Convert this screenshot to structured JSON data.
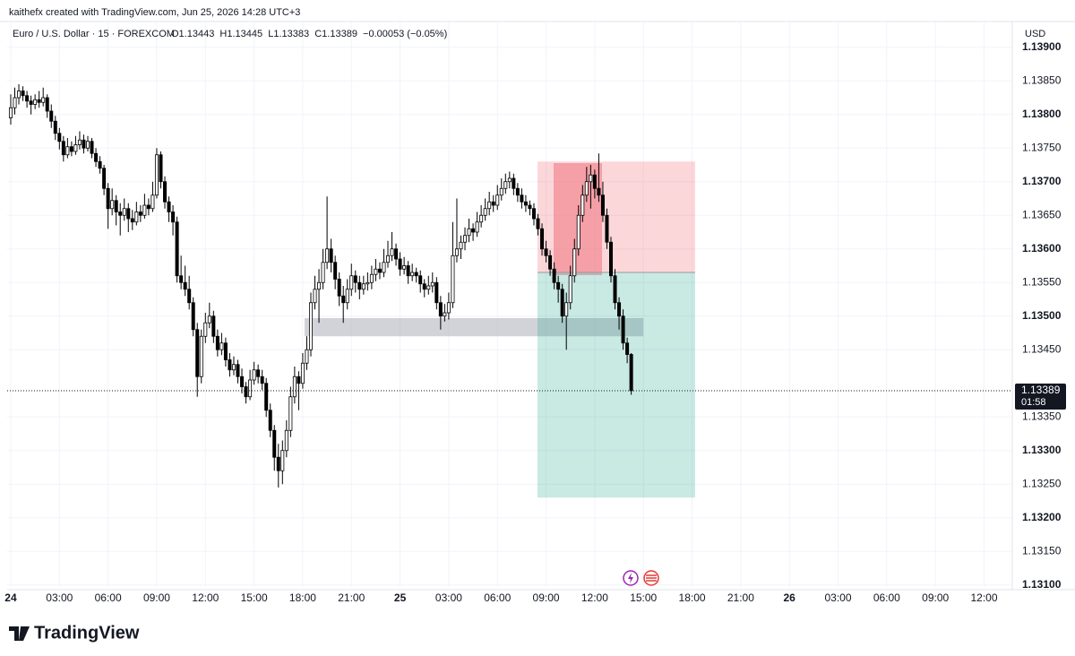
{
  "header": {
    "credit": "kaithefx created with TradingView.com, Jun 25, 2026 14:28 UTC+3"
  },
  "footer": {
    "brand": "TradingView"
  },
  "chart_data": {
    "type": "candlestick",
    "symbol": "Euro / U.S. Dollar · 15 · FOREXCOM",
    "quote": "O1.13443  H1.13445  L1.13383  C1.13389  −0.00053 (−0.05%)",
    "currency": "USD",
    "last_price": 1.13389,
    "countdown": "01:58",
    "colors": {
      "up": "#ffffff",
      "down": "#000000",
      "outline": "#000000"
    },
    "grid": true,
    "xlim": [
      -0.22,
      61.74
    ],
    "xticks": [
      {
        "value": 0,
        "label": "24"
      },
      {
        "value": 3,
        "label": "03:00"
      },
      {
        "value": 6,
        "label": "06:00"
      },
      {
        "value": 9,
        "label": "09:00"
      },
      {
        "value": 12,
        "label": "12:00"
      },
      {
        "value": 15,
        "label": "15:00"
      },
      {
        "value": 18,
        "label": "18:00"
      },
      {
        "value": 21,
        "label": "21:00"
      },
      {
        "value": 24,
        "label": "25"
      },
      {
        "value": 27,
        "label": "03:00"
      },
      {
        "value": 30,
        "label": "06:00"
      },
      {
        "value": 33,
        "label": "09:00"
      },
      {
        "value": 36,
        "label": "12:00"
      },
      {
        "value": 39,
        "label": "15:00"
      },
      {
        "value": 42,
        "label": "18:00"
      },
      {
        "value": 45,
        "label": "21:00"
      },
      {
        "value": 48,
        "label": "26"
      },
      {
        "value": 51,
        "label": "03:00"
      },
      {
        "value": 54,
        "label": "06:00"
      },
      {
        "value": 57,
        "label": "09:00"
      },
      {
        "value": 60,
        "label": "12:00"
      }
    ],
    "ylim": [
      1.13097,
      1.13941
    ],
    "yticks": [
      {
        "value": 1.139,
        "label": "1.13900"
      },
      {
        "value": 1.1385,
        "label": "1.13850"
      },
      {
        "value": 1.138,
        "label": "1.13800"
      },
      {
        "value": 1.1375,
        "label": "1.13750"
      },
      {
        "value": 1.137,
        "label": "1.13700"
      },
      {
        "value": 1.1365,
        "label": "1.13650"
      },
      {
        "value": 1.136,
        "label": "1.13600"
      },
      {
        "value": 1.1355,
        "label": "1.13550"
      },
      {
        "value": 1.135,
        "label": "1.13500"
      },
      {
        "value": 1.1345,
        "label": "1.13450"
      },
      {
        "value": 1.1335,
        "label": "1.13350"
      },
      {
        "value": 1.133,
        "label": "1.13300"
      },
      {
        "value": 1.1325,
        "label": "1.13250"
      },
      {
        "value": 1.132,
        "label": "1.13200"
      },
      {
        "value": 1.1315,
        "label": "1.13150"
      },
      {
        "value": 1.131,
        "label": "1.13100"
      }
    ],
    "zone": {
      "x": [
        18.11,
        39.0
      ],
      "top": 1.13497,
      "bottom": 1.1347
    },
    "position": {
      "x": [
        32.47,
        42.19
      ],
      "stop": 1.1373,
      "entry": 1.13565,
      "target": 1.1323
    },
    "x": [
      0,
      0.25,
      0.5,
      0.75,
      1,
      1.25,
      1.5,
      1.75,
      2,
      2.25,
      2.5,
      2.75,
      3,
      3.25,
      3.5,
      3.75,
      4,
      4.25,
      4.5,
      4.75,
      5,
      5.25,
      5.5,
      5.75,
      6,
      6.25,
      6.5,
      6.75,
      7,
      7.25,
      7.5,
      7.75,
      8,
      8.25,
      8.5,
      8.75,
      9,
      9.25,
      9.5,
      9.75,
      10,
      10.25,
      10.5,
      10.75,
      11,
      11.25,
      11.5,
      11.75,
      12,
      12.25,
      12.5,
      12.75,
      13,
      13.25,
      13.5,
      13.75,
      14,
      14.25,
      14.5,
      14.75,
      15,
      15.25,
      15.5,
      15.75,
      16,
      16.25,
      16.5,
      16.75,
      17,
      17.25,
      17.5,
      17.75,
      18,
      18.25,
      18.5,
      18.75,
      19,
      19.25,
      19.5,
      19.75,
      20,
      20.25,
      20.5,
      20.75,
      21,
      21.25,
      21.5,
      21.75,
      22,
      22.25,
      22.5,
      22.75,
      23,
      23.25,
      23.5,
      23.75,
      24,
      24.25,
      24.5,
      24.75,
      25,
      25.25,
      25.5,
      25.75,
      26,
      26.25,
      26.5,
      26.75,
      27,
      27.25,
      27.5,
      27.75,
      28,
      28.25,
      28.5,
      28.75,
      29,
      29.25,
      29.5,
      29.75,
      30,
      30.25,
      30.5,
      30.75,
      31,
      31.25,
      31.5,
      31.75,
      32,
      32.25,
      32.5,
      32.75,
      33,
      33.25,
      33.5,
      33.75,
      34,
      34.25,
      34.5,
      34.75,
      35,
      35.25,
      35.5,
      35.75,
      36,
      36.25,
      36.5,
      36.75,
      37,
      37.25,
      37.5,
      37.75,
      38,
      38.25
    ],
    "ohlc": [
      [
        1.13795,
        1.1383,
        1.13785,
        1.1381
      ],
      [
        1.1381,
        1.1384,
        1.138,
        1.13825
      ],
      [
        1.13825,
        1.13845,
        1.13815,
        1.13835
      ],
      [
        1.13835,
        1.13842,
        1.1382,
        1.13828
      ],
      [
        1.13828,
        1.13835,
        1.1381,
        1.1382
      ],
      [
        1.1382,
        1.13828,
        1.138,
        1.13815
      ],
      [
        1.13815,
        1.1383,
        1.13808,
        1.13822
      ],
      [
        1.13822,
        1.13835,
        1.1381,
        1.13818
      ],
      [
        1.13818,
        1.1384,
        1.13812,
        1.13825
      ],
      [
        1.13825,
        1.1383,
        1.13795,
        1.13805
      ],
      [
        1.13805,
        1.13815,
        1.1378,
        1.1379
      ],
      [
        1.1379,
        1.13798,
        1.13762,
        1.13772
      ],
      [
        1.13772,
        1.1378,
        1.13748,
        1.1376
      ],
      [
        1.1376,
        1.13768,
        1.1373,
        1.1374
      ],
      [
        1.1374,
        1.13765,
        1.13735,
        1.13752
      ],
      [
        1.13752,
        1.1376,
        1.13738,
        1.13745
      ],
      [
        1.13745,
        1.13768,
        1.1374,
        1.13755
      ],
      [
        1.13755,
        1.13775,
        1.13748,
        1.13762
      ],
      [
        1.13762,
        1.1377,
        1.13742,
        1.1375
      ],
      [
        1.1375,
        1.13768,
        1.13745,
        1.1376
      ],
      [
        1.1376,
        1.13765,
        1.13735,
        1.13742
      ],
      [
        1.13742,
        1.1375,
        1.13722,
        1.1373
      ],
      [
        1.1373,
        1.13738,
        1.13712,
        1.1372
      ],
      [
        1.1372,
        1.13725,
        1.1368,
        1.1369
      ],
      [
        1.1369,
        1.13698,
        1.1363,
        1.1366
      ],
      [
        1.1366,
        1.1369,
        1.1365,
        1.13672
      ],
      [
        1.13672,
        1.1368,
        1.13635,
        1.13655
      ],
      [
        1.13655,
        1.13668,
        1.1362,
        1.1365
      ],
      [
        1.1365,
        1.13675,
        1.13642,
        1.1366
      ],
      [
        1.1366,
        1.13668,
        1.13625,
        1.13645
      ],
      [
        1.13645,
        1.13658,
        1.13628,
        1.1364
      ],
      [
        1.1364,
        1.1367,
        1.13635,
        1.13655
      ],
      [
        1.13655,
        1.13665,
        1.1364,
        1.1365
      ],
      [
        1.1365,
        1.13682,
        1.13645,
        1.13665
      ],
      [
        1.13665,
        1.13675,
        1.1365,
        1.1366
      ],
      [
        1.1366,
        1.137,
        1.13655,
        1.1368
      ],
      [
        1.1368,
        1.1375,
        1.13675,
        1.1374
      ],
      [
        1.1374,
        1.13745,
        1.1369,
        1.137
      ],
      [
        1.137,
        1.13708,
        1.1366,
        1.1367
      ],
      [
        1.1367,
        1.13678,
        1.1364,
        1.13655
      ],
      [
        1.13655,
        1.13665,
        1.1362,
        1.1364
      ],
      [
        1.1364,
        1.13648,
        1.1355,
        1.1356
      ],
      [
        1.1356,
        1.1359,
        1.1354,
        1.1355
      ],
      [
        1.1355,
        1.13575,
        1.1353,
        1.1354
      ],
      [
        1.1354,
        1.1356,
        1.1351,
        1.1352
      ],
      [
        1.1352,
        1.13528,
        1.1347,
        1.1348
      ],
      [
        1.1348,
        1.1349,
        1.1338,
        1.1341
      ],
      [
        1.1341,
        1.1348,
        1.134,
        1.1347
      ],
      [
        1.1347,
        1.13505,
        1.1346,
        1.1349
      ],
      [
        1.1349,
        1.1352,
        1.13482,
        1.135
      ],
      [
        1.135,
        1.13508,
        1.1346,
        1.1347
      ],
      [
        1.1347,
        1.1348,
        1.1344,
        1.1345
      ],
      [
        1.1345,
        1.13475,
        1.13442,
        1.1346
      ],
      [
        1.1346,
        1.13468,
        1.13425,
        1.13435
      ],
      [
        1.13435,
        1.13445,
        1.1341,
        1.1342
      ],
      [
        1.1342,
        1.1344,
        1.13412,
        1.13428
      ],
      [
        1.13428,
        1.13435,
        1.134,
        1.1341
      ],
      [
        1.1341,
        1.13422,
        1.13385,
        1.13395
      ],
      [
        1.13395,
        1.13402,
        1.1337,
        1.1338
      ],
      [
        1.1338,
        1.1342,
        1.13375,
        1.13405
      ],
      [
        1.13405,
        1.13432,
        1.13398,
        1.1342
      ],
      [
        1.1342,
        1.13428,
        1.134,
        1.1341
      ],
      [
        1.1341,
        1.1342,
        1.1339,
        1.134
      ],
      [
        1.134,
        1.13408,
        1.1335,
        1.1336
      ],
      [
        1.1336,
        1.1337,
        1.1332,
        1.1333
      ],
      [
        1.1333,
        1.13338,
        1.1327,
        1.1329
      ],
      [
        1.1329,
        1.1331,
        1.13245,
        1.1327
      ],
      [
        1.1327,
        1.13315,
        1.1325,
        1.133
      ],
      [
        1.133,
        1.13345,
        1.1329,
        1.1333
      ],
      [
        1.1333,
        1.13395,
        1.1332,
        1.1338
      ],
      [
        1.1338,
        1.13425,
        1.1337,
        1.1341
      ],
      [
        1.1341,
        1.13418,
        1.1336,
        1.134
      ],
      [
        1.134,
        1.13445,
        1.13392,
        1.1343
      ],
      [
        1.1343,
        1.1347,
        1.1342,
        1.1345
      ],
      [
        1.1345,
        1.13535,
        1.1344,
        1.1352
      ],
      [
        1.1352,
        1.1356,
        1.1351,
        1.1354
      ],
      [
        1.1354,
        1.1357,
        1.1349,
        1.1355
      ],
      [
        1.1355,
        1.136,
        1.1354,
        1.1358
      ],
      [
        1.1358,
        1.13678,
        1.1357,
        1.136
      ],
      [
        1.136,
        1.13615,
        1.13565,
        1.1358
      ],
      [
        1.1358,
        1.1359,
        1.1354,
        1.13555
      ],
      [
        1.13555,
        1.13565,
        1.13515,
        1.1353
      ],
      [
        1.1353,
        1.13545,
        1.1349,
        1.1352
      ],
      [
        1.1352,
        1.13555,
        1.1351,
        1.1354
      ],
      [
        1.1354,
        1.13578,
        1.1353,
        1.1356
      ],
      [
        1.1356,
        1.13568,
        1.13535,
        1.1355
      ],
      [
        1.1355,
        1.1356,
        1.13525,
        1.1354
      ],
      [
        1.1354,
        1.1356,
        1.13532,
        1.13548
      ],
      [
        1.13548,
        1.13565,
        1.13538,
        1.1355
      ],
      [
        1.1355,
        1.13575,
        1.1354,
        1.13562
      ],
      [
        1.13562,
        1.13585,
        1.13552,
        1.1357
      ],
      [
        1.1357,
        1.1358,
        1.13555,
        1.13565
      ],
      [
        1.13565,
        1.136,
        1.13558,
        1.1358
      ],
      [
        1.1358,
        1.13612,
        1.13572,
        1.1359
      ],
      [
        1.1359,
        1.13625,
        1.13582,
        1.136
      ],
      [
        1.136,
        1.13608,
        1.13575,
        1.13585
      ],
      [
        1.13585,
        1.13595,
        1.1356,
        1.1357
      ],
      [
        1.1357,
        1.13588,
        1.13562,
        1.13575
      ],
      [
        1.13575,
        1.13582,
        1.13548,
        1.1356
      ],
      [
        1.1356,
        1.13578,
        1.13552,
        1.13565
      ],
      [
        1.13565,
        1.13572,
        1.1355,
        1.1356
      ],
      [
        1.1356,
        1.13568,
        1.13535,
        1.13548
      ],
      [
        1.13548,
        1.13555,
        1.13528,
        1.1354
      ],
      [
        1.1354,
        1.1356,
        1.13532,
        1.13545
      ],
      [
        1.13545,
        1.13565,
        1.13535,
        1.1355
      ],
      [
        1.1355,
        1.13558,
        1.1351,
        1.1352
      ],
      [
        1.1352,
        1.1353,
        1.1348,
        1.135
      ],
      [
        1.135,
        1.13518,
        1.13492,
        1.13505
      ],
      [
        1.13505,
        1.13535,
        1.13495,
        1.1352
      ],
      [
        1.1352,
        1.1364,
        1.13512,
        1.1359
      ],
      [
        1.1359,
        1.13675,
        1.1358,
        1.136
      ],
      [
        1.136,
        1.1362,
        1.13585,
        1.1361
      ],
      [
        1.1361,
        1.13632,
        1.13598,
        1.1362
      ],
      [
        1.1362,
        1.13645,
        1.1361,
        1.1363
      ],
      [
        1.1363,
        1.13638,
        1.13612,
        1.13625
      ],
      [
        1.13625,
        1.13655,
        1.13618,
        1.1364
      ],
      [
        1.1364,
        1.13665,
        1.13632,
        1.1365
      ],
      [
        1.1365,
        1.13675,
        1.13642,
        1.1366
      ],
      [
        1.1366,
        1.13685,
        1.1365,
        1.1367
      ],
      [
        1.1367,
        1.1368,
        1.13655,
        1.13665
      ],
      [
        1.13665,
        1.13695,
        1.13658,
        1.1368
      ],
      [
        1.1368,
        1.13705,
        1.13672,
        1.1369
      ],
      [
        1.1369,
        1.13712,
        1.13682,
        1.137
      ],
      [
        1.137,
        1.13715,
        1.1369,
        1.13705
      ],
      [
        1.13705,
        1.13712,
        1.1368,
        1.1369
      ],
      [
        1.1369,
        1.13698,
        1.1367,
        1.1368
      ],
      [
        1.1368,
        1.1369,
        1.1366,
        1.1367
      ],
      [
        1.1367,
        1.1368,
        1.13655,
        1.13665
      ],
      [
        1.13665,
        1.13672,
        1.1365,
        1.1366
      ],
      [
        1.1366,
        1.13668,
        1.13635,
        1.13645
      ],
      [
        1.13645,
        1.13652,
        1.1362,
        1.1363
      ],
      [
        1.1363,
        1.13638,
        1.1359,
        1.136
      ],
      [
        1.136,
        1.13612,
        1.1358,
        1.1359
      ],
      [
        1.1359,
        1.13598,
        1.1356,
        1.1357
      ],
      [
        1.1357,
        1.1358,
        1.1354,
        1.1355
      ],
      [
        1.1355,
        1.1356,
        1.1352,
        1.1354
      ],
      [
        1.1354,
        1.13548,
        1.1349,
        1.135
      ],
      [
        1.135,
        1.13535,
        1.1345,
        1.1352
      ],
      [
        1.1352,
        1.13575,
        1.1351,
        1.1356
      ],
      [
        1.1356,
        1.13615,
        1.1355,
        1.136
      ],
      [
        1.136,
        1.13665,
        1.1359,
        1.1365
      ],
      [
        1.1365,
        1.13695,
        1.1364,
        1.1368
      ],
      [
        1.1368,
        1.13722,
        1.1367,
        1.137
      ],
      [
        1.137,
        1.13725,
        1.1366,
        1.1371
      ],
      [
        1.1371,
        1.13718,
        1.13675,
        1.1369
      ],
      [
        1.1369,
        1.13742,
        1.1367,
        1.1368
      ],
      [
        1.1368,
        1.137,
        1.1364,
        1.1365
      ],
      [
        1.1365,
        1.1366,
        1.136,
        1.1361
      ],
      [
        1.1361,
        1.13618,
        1.1355,
        1.1356
      ],
      [
        1.1356,
        1.1357,
        1.1351,
        1.1352
      ],
      [
        1.1352,
        1.13528,
        1.1348,
        1.135
      ],
      [
        1.135,
        1.1351,
        1.1345,
        1.1346
      ],
      [
        1.1346,
        1.13468,
        1.1343,
        1.13443
      ],
      [
        1.13443,
        1.13445,
        1.13383,
        1.13389
      ]
    ]
  }
}
